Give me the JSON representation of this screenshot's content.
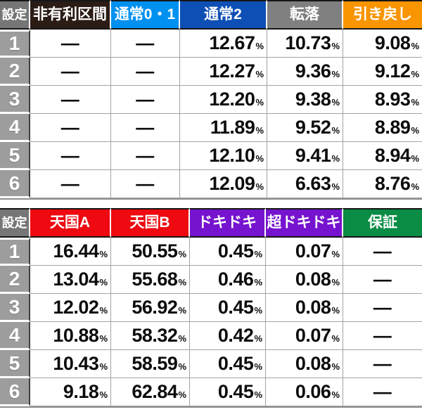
{
  "colors": {
    "setting_header_gray": "#767676",
    "non_yuri_dark_brown": "#2b1c16",
    "tsujo01_blue": "#0090f0",
    "tsujo2_deep_blue": "#0e4fb5",
    "tenraku_gray": "#808080",
    "hikimodoshi_orange": "#f99500",
    "tengoku_red": "#ee0a10",
    "dokidoki_purple": "#7613cf",
    "hosho_green": "#0a8c44",
    "row_number_gray": "#9d9d9d"
  },
  "chart_data": [
    {
      "type": "table",
      "columns": [
        "設定",
        "非有利区間",
        "通常0・1",
        "通常2",
        "転落",
        "引き戻し"
      ],
      "header_colors": [
        "#767676",
        "#2b1c16",
        "#0090f0",
        "#0e4fb5",
        "#808080",
        "#f99500"
      ],
      "rows": [
        [
          "1",
          "—",
          "—",
          "12.67%",
          "10.73%",
          "9.08%"
        ],
        [
          "2",
          "—",
          "—",
          "12.27%",
          "9.36%",
          "9.12%"
        ],
        [
          "3",
          "—",
          "—",
          "12.20%",
          "9.38%",
          "8.93%"
        ],
        [
          "4",
          "—",
          "—",
          "11.89%",
          "9.52%",
          "8.89%"
        ],
        [
          "5",
          "—",
          "—",
          "12.10%",
          "9.41%",
          "8.94%"
        ],
        [
          "6",
          "—",
          "—",
          "12.09%",
          "6.63%",
          "8.76%"
        ]
      ]
    },
    {
      "type": "table",
      "columns": [
        "設定",
        "天国A",
        "天国B",
        "ドキドキ",
        "超ドキドキ",
        "保証"
      ],
      "header_colors": [
        "#767676",
        "#ee0a10",
        "#ee0a10",
        "#7613cf",
        "#7613cf",
        "#0a8c44"
      ],
      "rows": [
        [
          "1",
          "16.44%",
          "50.55%",
          "0.45%",
          "0.07%",
          "—"
        ],
        [
          "2",
          "13.04%",
          "55.68%",
          "0.46%",
          "0.08%",
          "—"
        ],
        [
          "3",
          "12.02%",
          "56.92%",
          "0.45%",
          "0.08%",
          "—"
        ],
        [
          "4",
          "10.88%",
          "58.32%",
          "0.42%",
          "0.07%",
          "—"
        ],
        [
          "5",
          "10.43%",
          "58.59%",
          "0.45%",
          "0.08%",
          "—"
        ],
        [
          "6",
          "9.18%",
          "62.84%",
          "0.45%",
          "0.06%",
          "—"
        ]
      ]
    }
  ]
}
